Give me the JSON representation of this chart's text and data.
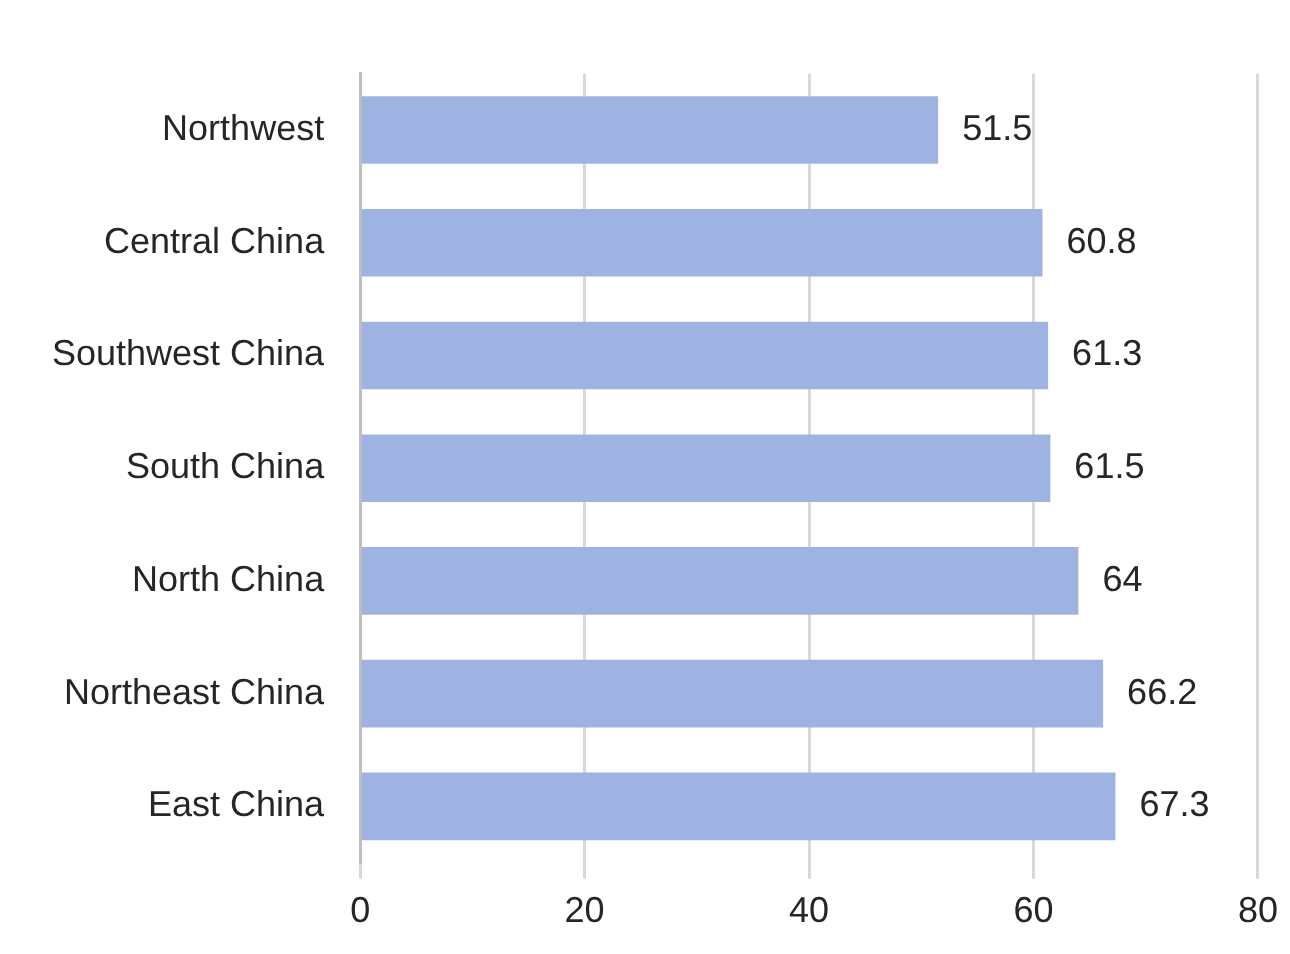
{
  "chart_data": {
    "type": "bar",
    "orientation": "horizontal",
    "categories": [
      "Northwest",
      "Central China",
      "Southwest China",
      "South China",
      "North China",
      "Northeast China",
      "East China"
    ],
    "values": [
      51.5,
      60.8,
      61.3,
      61.5,
      64,
      66.2,
      67.3
    ],
    "color": "#9fb3e3",
    "xlim": [
      0,
      80
    ],
    "xticks": [
      0,
      20,
      40,
      60,
      80
    ],
    "grid": "x",
    "data_labels": true,
    "legend": false
  }
}
